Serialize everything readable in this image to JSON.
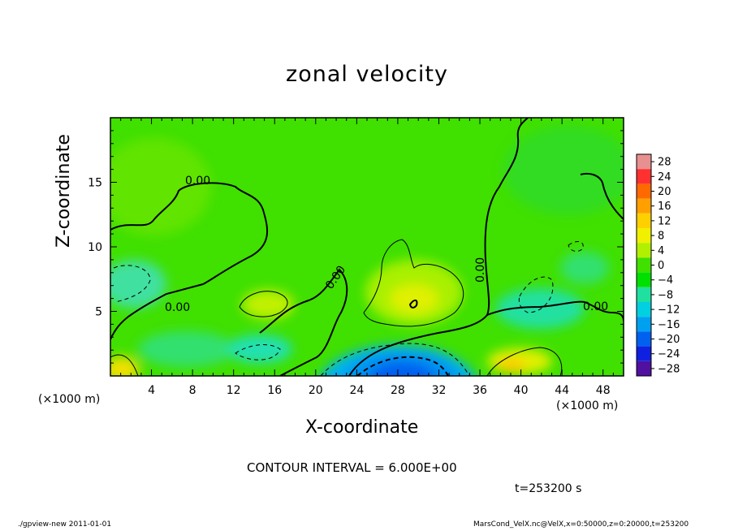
{
  "chart_data": {
    "type": "heatmap",
    "title": "zonal velocity",
    "xlabel": "X-coordinate",
    "ylabel": "Z-coordinate",
    "x_unit": "(×1000 m)",
    "y_unit": "(×1000 m)",
    "xlim": [
      0,
      50
    ],
    "ylim": [
      0,
      20
    ],
    "x_ticks": [
      4,
      8,
      12,
      16,
      20,
      24,
      28,
      32,
      36,
      40,
      44,
      48
    ],
    "y_ticks": [
      5,
      10,
      15
    ],
    "colorbar": {
      "levels": [
        28,
        24,
        20,
        16,
        12,
        8,
        4,
        0,
        -4,
        -8,
        -12,
        -16,
        -20,
        -24,
        -28
      ],
      "colors": [
        "#e89090",
        "#ff3030",
        "#ff6a00",
        "#ffa000",
        "#ffd000",
        "#f0f000",
        "#b0f000",
        "#40e000",
        "#00e000",
        "#20e0a0",
        "#00d0e0",
        "#00a0f0",
        "#0060f0",
        "#1020e0",
        "#5010a0"
      ]
    },
    "contour_interval_text": "CONTOUR INTERVAL = 6.000E+00",
    "contour_zero_label": "0.00",
    "time_text": "t=253200 s",
    "footer_left": "./gpview-new   2011-01-01",
    "footer_right": "MarsCond_VelX.nc@VelX,x=0:50000,z=0:20000,t=253200"
  }
}
